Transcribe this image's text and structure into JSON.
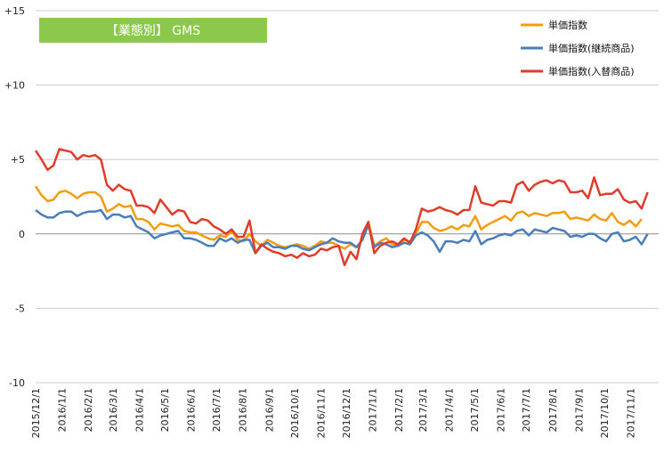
{
  "chart_data": {
    "type": "line",
    "title": "【業態別】 GMS",
    "title_bg_color": "#8cc84b",
    "ylim": [
      -10,
      15
    ],
    "yticks": [
      15,
      10,
      5,
      0,
      -5,
      -10
    ],
    "ytick_labels": [
      "+15",
      "+10",
      "+5",
      "0",
      "-5",
      "-10"
    ],
    "x_date_start": "2015-12-01",
    "x_date_end": "2017-12-04",
    "xtick_labels": [
      "2015/12/1",
      "2016/1/1",
      "2016/2/1",
      "2016/3/1",
      "2016/4/1",
      "2016/5/1",
      "2016/6/1",
      "2016/7/1",
      "2016/8/1",
      "2016/9/1",
      "2016/10/1",
      "2016/11/1",
      "2016/12/1",
      "2017/1/1",
      "2017/2/1",
      "2017/3/1",
      "2017/4/1",
      "2017/5/1",
      "2017/6/1",
      "2017/7/1",
      "2017/8/1",
      "2017/9/1",
      "2017/10/1",
      "2017/11/1"
    ],
    "xtick_dates": [
      "2015-12-01",
      "2016-01-01",
      "2016-02-01",
      "2016-03-01",
      "2016-04-01",
      "2016-05-01",
      "2016-06-01",
      "2016-07-01",
      "2016-08-01",
      "2016-09-01",
      "2016-10-01",
      "2016-11-01",
      "2016-12-01",
      "2017-01-01",
      "2017-02-01",
      "2017-03-01",
      "2017-04-01",
      "2017-05-01",
      "2017-06-01",
      "2017-07-01",
      "2017-08-01",
      "2017-09-01",
      "2017-10-01",
      "2017-11-01"
    ],
    "grid": "horizontal",
    "legend_position": "top-right",
    "series": [
      {
        "name": "単価指数",
        "color": "#f39c12",
        "values": [
          3.2,
          2.6,
          2.2,
          2.3,
          2.8,
          2.9,
          2.7,
          2.4,
          2.7,
          2.8,
          2.8,
          2.5,
          1.5,
          1.7,
          2.0,
          1.8,
          1.9,
          1.0,
          1.0,
          0.8,
          0.3,
          0.7,
          0.6,
          0.5,
          0.6,
          0.2,
          0.1,
          0.1,
          -0.1,
          -0.3,
          -0.4,
          -0.1,
          -0.2,
          0.2,
          -0.4,
          -0.5,
          0.0,
          -0.5,
          -0.8,
          -0.4,
          -0.6,
          -0.8,
          -0.9,
          -0.8,
          -0.7,
          -0.8,
          -1.0,
          -0.8,
          -0.5,
          -0.6,
          -0.6,
          -0.8,
          -1.0,
          -0.7,
          -0.9,
          -0.4,
          0.8,
          -0.8,
          -0.5,
          -0.3,
          -0.7,
          -0.8,
          -0.4,
          -0.5,
          0.0,
          0.8,
          0.8,
          0.4,
          0.2,
          0.3,
          0.5,
          0.3,
          0.6,
          0.5,
          1.2,
          0.3,
          0.6,
          0.8,
          1.0,
          1.2,
          0.9,
          1.4,
          1.5,
          1.2,
          1.4,
          1.3,
          1.2,
          1.4,
          1.4,
          1.5,
          1.0,
          1.1,
          1.0,
          0.9,
          1.3,
          1.0,
          0.9,
          1.4,
          0.8,
          0.6,
          0.9,
          0.5,
          1.0
        ]
      },
      {
        "name": "単価指数(継続商品)",
        "color": "#4a7ebb",
        "values": [
          1.6,
          1.3,
          1.1,
          1.1,
          1.4,
          1.5,
          1.5,
          1.2,
          1.4,
          1.5,
          1.5,
          1.6,
          1.0,
          1.3,
          1.3,
          1.1,
          1.2,
          0.5,
          0.3,
          0.1,
          -0.3,
          -0.1,
          0.0,
          0.1,
          0.2,
          -0.3,
          -0.3,
          -0.4,
          -0.6,
          -0.8,
          -0.8,
          -0.3,
          -0.5,
          -0.3,
          -0.6,
          -0.4,
          -0.4,
          -1.3,
          -0.8,
          -0.6,
          -0.9,
          -0.9,
          -1.0,
          -0.8,
          -0.8,
          -1.0,
          -1.1,
          -0.9,
          -0.7,
          -0.6,
          -0.3,
          -0.5,
          -0.6,
          -0.6,
          -0.9,
          -0.4,
          0.6,
          -0.9,
          -0.6,
          -0.7,
          -0.9,
          -0.8,
          -0.6,
          -0.7,
          -0.1,
          0.1,
          -0.1,
          -0.5,
          -1.2,
          -0.5,
          -0.5,
          -0.6,
          -0.4,
          -0.5,
          0.2,
          -0.7,
          -0.4,
          -0.3,
          -0.1,
          0.0,
          -0.1,
          0.2,
          0.3,
          -0.1,
          0.3,
          0.2,
          0.1,
          0.4,
          0.3,
          0.2,
          -0.2,
          -0.1,
          -0.2,
          0.0,
          0.0,
          -0.3,
          -0.5,
          0.0,
          0.1,
          -0.5,
          -0.4,
          -0.2,
          -0.7,
          0.0
        ]
      },
      {
        "name": "単価指数(入替商品)",
        "color": "#e03c2a",
        "values": [
          5.6,
          5.0,
          4.3,
          4.6,
          5.7,
          5.6,
          5.5,
          5.0,
          5.3,
          5.2,
          5.3,
          5.0,
          3.3,
          2.9,
          3.3,
          3.0,
          2.9,
          1.9,
          1.9,
          1.8,
          1.4,
          2.3,
          1.8,
          1.3,
          1.6,
          1.5,
          0.8,
          0.7,
          1.0,
          0.9,
          0.5,
          0.3,
          0.0,
          0.3,
          -0.2,
          -0.2,
          0.9,
          -1.3,
          -0.7,
          -1.0,
          -1.2,
          -1.3,
          -1.5,
          -1.4,
          -1.6,
          -1.3,
          -1.5,
          -1.4,
          -1.0,
          -1.1,
          -0.9,
          -0.8,
          -2.1,
          -1.2,
          -1.7,
          0.0,
          0.8,
          -1.3,
          -0.8,
          -0.6,
          -0.5,
          -0.7,
          -0.3,
          -0.6,
          0.3,
          1.7,
          1.5,
          1.6,
          1.8,
          1.6,
          1.5,
          1.3,
          1.6,
          1.6,
          3.2,
          2.1,
          2.0,
          1.9,
          2.2,
          2.2,
          2.1,
          3.3,
          3.5,
          2.9,
          3.3,
          3.5,
          3.6,
          3.4,
          3.6,
          3.5,
          2.8,
          2.8,
          2.9,
          2.4,
          3.8,
          2.6,
          2.7,
          2.7,
          3.0,
          2.3,
          2.1,
          2.2,
          1.7,
          2.8
        ]
      }
    ]
  }
}
